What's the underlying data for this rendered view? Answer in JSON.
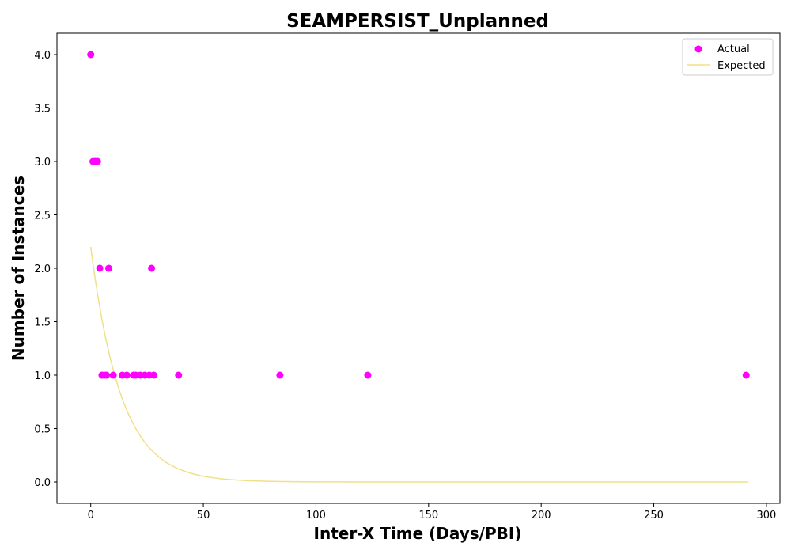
{
  "chart_data": {
    "type": "scatter",
    "title": "SEAMPERSIST_Unplanned",
    "xlabel": "Inter-X Time (Days/PBI)",
    "ylabel": "Number of Instances",
    "xlim": [
      -15,
      306
    ],
    "ylim": [
      -0.2,
      4.2
    ],
    "xticks": [
      0,
      50,
      100,
      150,
      200,
      250,
      300
    ],
    "yticks": [
      0.0,
      0.5,
      1.0,
      1.5,
      2.0,
      2.5,
      3.0,
      3.5,
      4.0
    ],
    "xtick_labels": [
      "0",
      "50",
      "100",
      "150",
      "200",
      "250",
      "300"
    ],
    "ytick_labels": [
      "0.0",
      "0.5",
      "1.0",
      "1.5",
      "2.0",
      "2.5",
      "3.0",
      "3.5",
      "4.0"
    ],
    "legend": {
      "position": "top-right",
      "entries": [
        "Actual",
        "Expected"
      ]
    },
    "grid": false,
    "series": [
      {
        "name": "Actual",
        "kind": "scatter",
        "color": "#ff00ff",
        "points": [
          [
            0,
            4
          ],
          [
            1,
            3
          ],
          [
            2,
            3
          ],
          [
            3,
            3
          ],
          [
            4,
            2
          ],
          [
            8,
            2
          ],
          [
            27,
            2
          ],
          [
            5,
            1
          ],
          [
            6,
            1
          ],
          [
            7,
            1
          ],
          [
            10,
            1
          ],
          [
            14,
            1
          ],
          [
            16,
            1
          ],
          [
            19,
            1
          ],
          [
            20,
            1
          ],
          [
            22,
            1
          ],
          [
            24,
            1
          ],
          [
            26,
            1
          ],
          [
            28,
            1
          ],
          [
            39,
            1
          ],
          [
            84,
            1
          ],
          [
            123,
            1
          ],
          [
            291,
            1
          ]
        ]
      },
      {
        "name": "Expected",
        "kind": "line",
        "color": "#f0e08a",
        "function": "2.2*exp(-x/13.5)",
        "x_range": [
          0,
          292
        ]
      }
    ]
  }
}
